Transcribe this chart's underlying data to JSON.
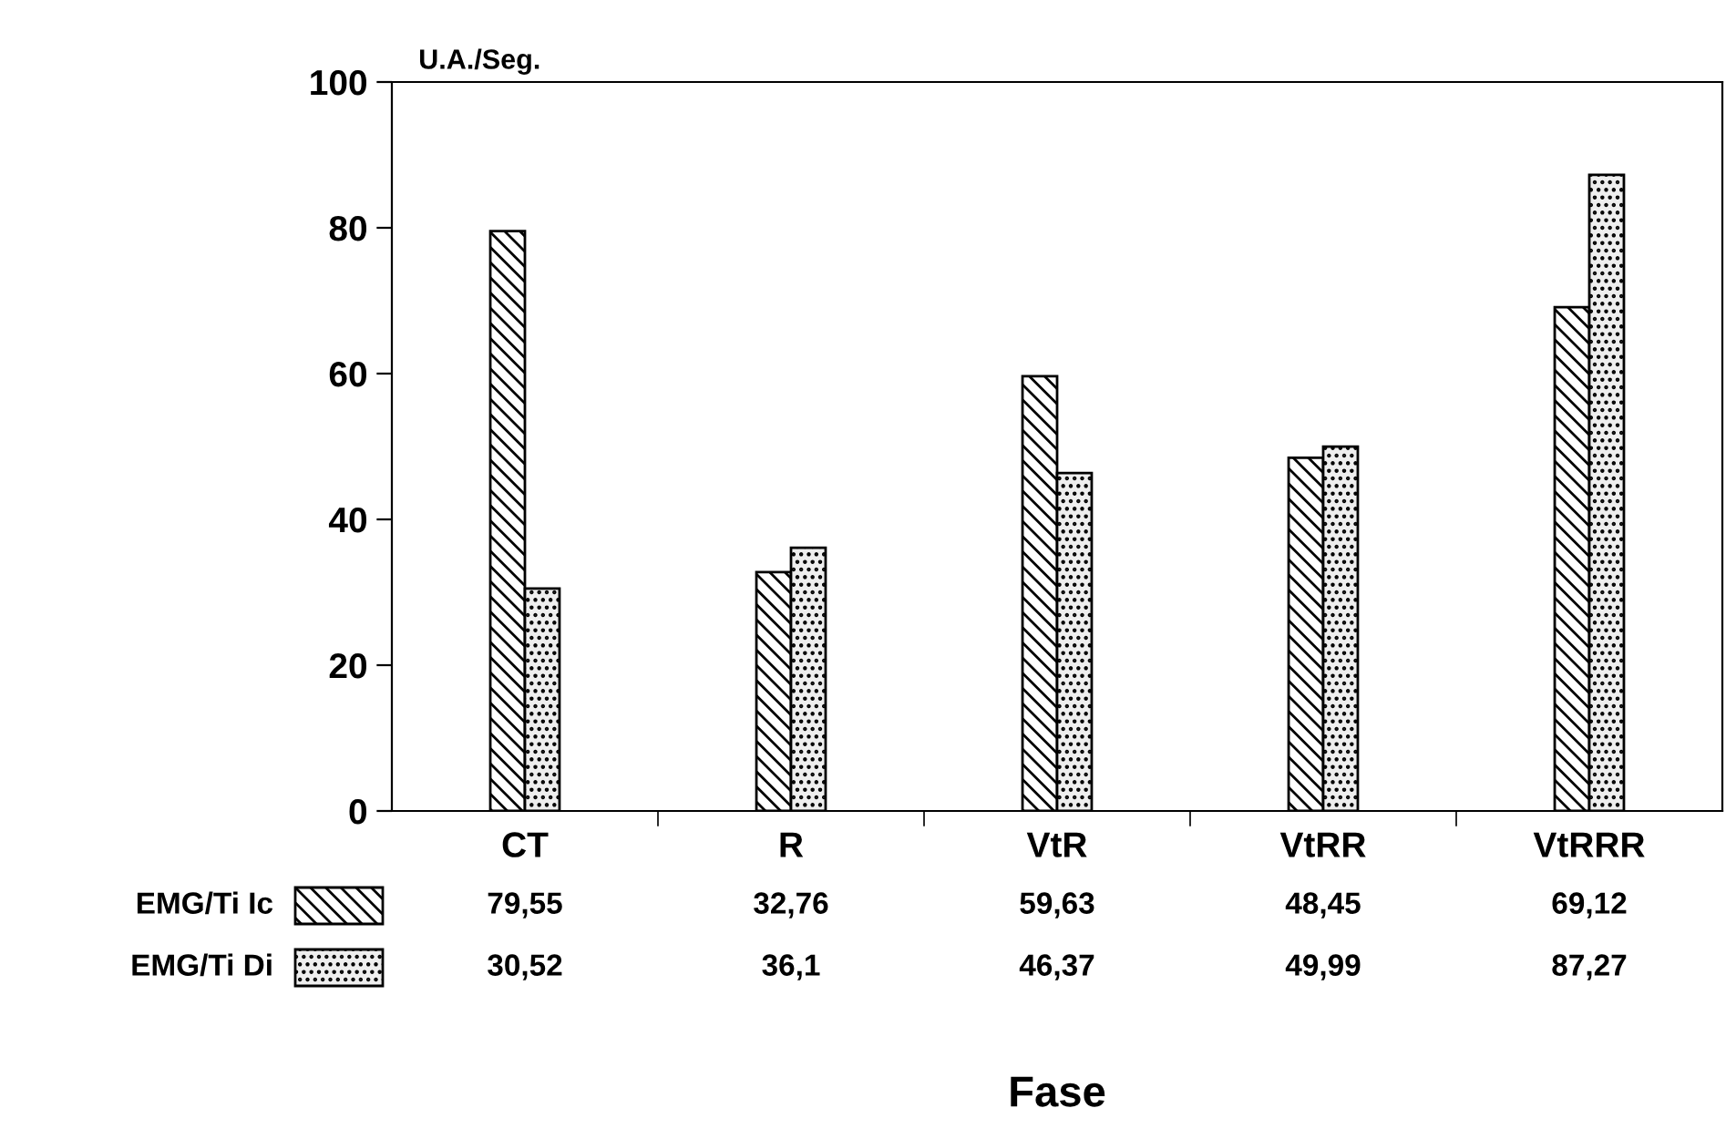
{
  "chart_data": {
    "type": "bar",
    "ylabel": "U.A./Seg.",
    "annotations": [
      "Fase"
    ],
    "categories": [
      "CT",
      "R",
      "VtR",
      "VtRR",
      "VtRRR"
    ],
    "series": [
      {
        "name": "EMG/Ti Ic",
        "color": "#000000",
        "values": [
          79.55,
          32.76,
          59.63,
          48.45,
          69.12
        ],
        "value_labels": [
          "79,55",
          "32,76",
          "59,63",
          "48,45",
          "69,12"
        ]
      },
      {
        "name": "EMG/Ti Di",
        "color": "#000000",
        "values": [
          30.52,
          36.1,
          46.37,
          49.99,
          87.27
        ],
        "value_labels": [
          "30,52",
          "36,1",
          "46,37",
          "49,99",
          "87,27"
        ]
      }
    ],
    "ylim": [
      0,
      100
    ],
    "yticks": [
      0,
      20,
      40,
      60,
      80,
      100
    ],
    "grid": false,
    "legend": "bottom left"
  }
}
